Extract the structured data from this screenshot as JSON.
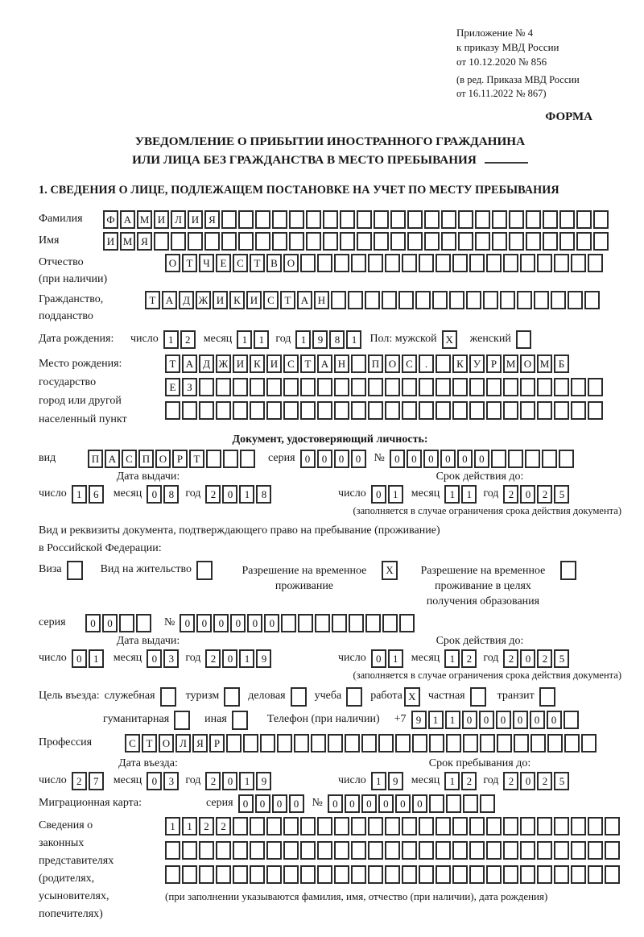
{
  "header": {
    "appendix_lines": [
      "Приложение № 4",
      "к приказу МВД России",
      "от 10.12.2020 № 856"
    ],
    "amendment_lines": [
      "(в ред. Приказа МВД России",
      "от 16.11.2022 № 867)"
    ],
    "forma": "ФОРМА"
  },
  "title": {
    "line1": "УВЕДОМЛЕНИЕ О ПРИБЫТИИ ИНОСТРАННОГО ГРАЖДАНИНА",
    "line2": "ИЛИ ЛИЦА БЕЗ ГРАЖДАНСТВА В МЕСТО ПРЕБЫВАНИЯ"
  },
  "section1_heading": "1. СВЕДЕНИЯ О ЛИЦЕ, ПОДЛЕЖАЩЕМ ПОСТАНОВКЕ НА УЧЕТ ПО МЕСТУ ПРЕБЫВАНИЯ",
  "labels": {
    "surname": "Фамилия",
    "given_name": "Имя",
    "patronymic_l1": "Отчество",
    "patronymic_l2": "(при наличии)",
    "citizenship_l1": "Гражданство,",
    "citizenship_l2": "подданство",
    "birth_date": "Дата рождения:",
    "day": "число",
    "month": "месяц",
    "year": "год",
    "sex_male": "Пол: мужской",
    "sex_female": "женский",
    "birth_place_l1": "Место рождения:",
    "birth_place_l2": "государство",
    "birth_place_l3": "город или другой",
    "birth_place_l4": "населенный пункт",
    "identity_doc_heading": "Документ, удостоверяющий личность:",
    "doc_kind": "вид",
    "series": "серия",
    "num": "№",
    "issue_date": "Дата выдачи:",
    "valid_until": "Срок действия до:",
    "valid_note": "(заполняется в случае ограничения срока действия документа)",
    "residence_l1": "Вид и реквизиты документа, подтверждающего право на пребывание (проживание)",
    "residence_l2": "в Российской Федерации:",
    "visa": "Виза",
    "residence_permit": "Вид на жительство",
    "temp_permit_l1": "Разрешение на временное",
    "temp_permit_l2": "проживание",
    "temp_edu_l1": "Разрешение на временное",
    "temp_edu_l2": "проживание в целях",
    "temp_edu_l3": "получения образования",
    "purpose": "Цель въезда:",
    "p_official": "служебная",
    "p_tourism": "туризм",
    "p_business": "деловая",
    "p_study": "учеба",
    "p_work": "работа",
    "p_private": "частная",
    "p_transit": "транзит",
    "p_humanitarian": "гуманитарная",
    "p_other": "иная",
    "phone": "Телефон (при наличии)",
    "phone_prefix": "+7",
    "profession": "Профессия",
    "entry_date": "Дата въезда:",
    "stay_until": "Срок пребывания до:",
    "migration_card": "Миграционная карта:",
    "rep_l1": "Сведения о",
    "rep_l2": "законных",
    "rep_l3": "представителях",
    "rep_l4": "(родителях,",
    "rep_l5": "усыновителях,",
    "rep_l6": "попечителях)",
    "rep_note": "(при заполнении указываются фамилия, имя, отчество (при наличии), дата рождения)"
  },
  "values": {
    "surname": {
      "value": "ФАМИЛИЯ",
      "len": 30
    },
    "given_name": {
      "value": "ИМЯ",
      "len": 30
    },
    "patronymic": {
      "value": "ОТЧЕСТВО",
      "len": 26
    },
    "citizenship": {
      "value": "ТАДЖИКИСТАН",
      "len": 27
    },
    "birth_day": {
      "value": "12",
      "len": 2
    },
    "birth_month": {
      "value": "11",
      "len": 2
    },
    "birth_year": {
      "value": "1981",
      "len": 4
    },
    "sex_male": {
      "value": "X",
      "len": 1
    },
    "sex_female": {
      "value": "",
      "len": 1
    },
    "birth_place_row1": {
      "value": "ТАДЖИКИСТАН ПОС. КУРМОМБ",
      "len": 24
    },
    "birth_place_row2": {
      "value": "ЕЗ",
      "len": 26
    },
    "birth_place_row3": {
      "value": "",
      "len": 26
    },
    "id_kind": {
      "value": "ПАСПОРТ",
      "len": 10
    },
    "id_series": {
      "value": "0000",
      "len": 4
    },
    "id_number": {
      "value": "000000",
      "len": 11
    },
    "id_issue_day": {
      "value": "16",
      "len": 2
    },
    "id_issue_month": {
      "value": "08",
      "len": 2
    },
    "id_issue_year": {
      "value": "2018",
      "len": 4
    },
    "id_valid_day": {
      "value": "01",
      "len": 2
    },
    "id_valid_month": {
      "value": "11",
      "len": 2
    },
    "id_valid_year": {
      "value": "2025",
      "len": 4
    },
    "cb_visa": {
      "value": "",
      "len": 1
    },
    "cb_residence_permit": {
      "value": "",
      "len": 1
    },
    "cb_temp_permit": {
      "value": "X",
      "len": 1
    },
    "cb_temp_edu": {
      "value": "",
      "len": 1
    },
    "permit_series": {
      "value": "00",
      "len": 4
    },
    "permit_number": {
      "value": "000000",
      "len": 14
    },
    "permit_issue_day": {
      "value": "01",
      "len": 2
    },
    "permit_issue_month": {
      "value": "03",
      "len": 2
    },
    "permit_issue_year": {
      "value": "2019",
      "len": 4
    },
    "permit_valid_day": {
      "value": "01",
      "len": 2
    },
    "permit_valid_month": {
      "value": "12",
      "len": 2
    },
    "permit_valid_year": {
      "value": "2025",
      "len": 4
    },
    "cb_official": {
      "value": "",
      "len": 1
    },
    "cb_tourism": {
      "value": "",
      "len": 1
    },
    "cb_business": {
      "value": "",
      "len": 1
    },
    "cb_study": {
      "value": "",
      "len": 1
    },
    "cb_work": {
      "value": "X",
      "len": 1
    },
    "cb_private": {
      "value": "",
      "len": 1
    },
    "cb_transit": {
      "value": "",
      "len": 1
    },
    "cb_humanitarian": {
      "value": "",
      "len": 1
    },
    "cb_other": {
      "value": "",
      "len": 1
    },
    "phone": {
      "value": "911000000",
      "len": 10
    },
    "profession": {
      "value": "СТОЛЯР",
      "len": 28
    },
    "entry_day": {
      "value": "27",
      "len": 2
    },
    "entry_month": {
      "value": "03",
      "len": 2
    },
    "entry_year": {
      "value": "2019",
      "len": 4
    },
    "stay_day": {
      "value": "19",
      "len": 2
    },
    "stay_month": {
      "value": "12",
      "len": 2
    },
    "stay_year": {
      "value": "2025",
      "len": 4
    },
    "mig_series": {
      "value": "0000",
      "len": 4
    },
    "mig_number": {
      "value": "000000",
      "len": 10
    },
    "rep_row1": {
      "value": "1122",
      "len": 27
    },
    "rep_row2": {
      "value": "",
      "len": 27
    },
    "rep_row3": {
      "value": "",
      "len": 27
    }
  }
}
